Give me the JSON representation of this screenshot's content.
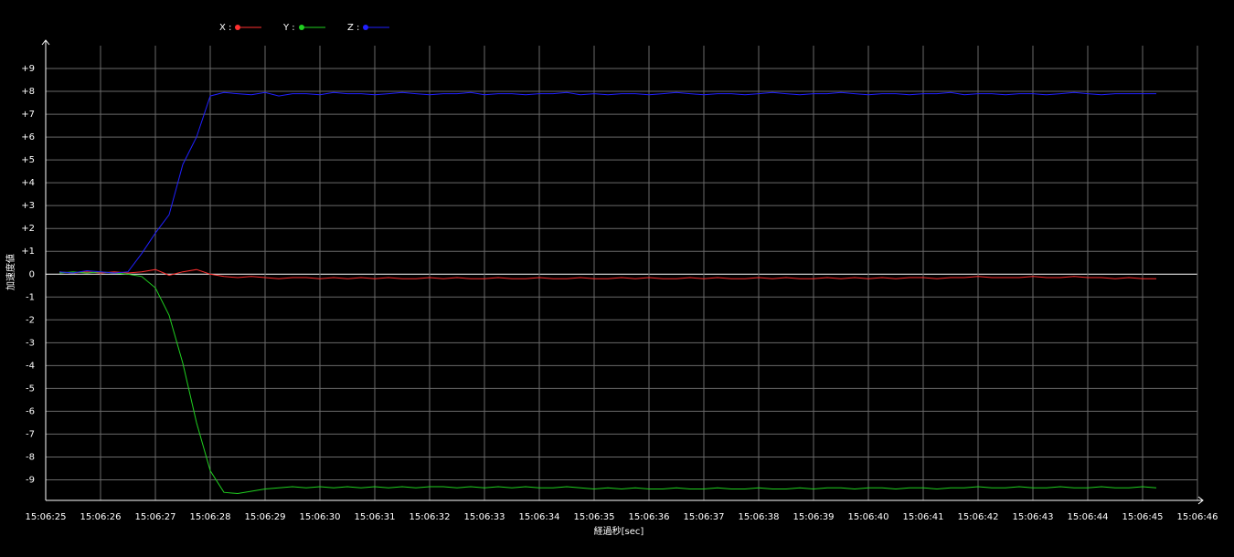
{
  "chart_data": {
    "type": "line",
    "xlabel": "経過秒[sec]",
    "ylabel": "加速度値",
    "x": [
      25.25,
      25.5,
      25.75,
      26,
      26.25,
      26.5,
      26.75,
      27,
      27.25,
      27.5,
      27.75,
      28,
      28.25,
      28.5,
      28.75,
      29,
      29.25,
      29.5,
      29.75,
      30,
      30.25,
      30.5,
      30.75,
      31,
      31.25,
      31.5,
      31.75,
      32,
      32.25,
      32.5,
      32.75,
      33,
      33.25,
      33.5,
      33.75,
      34,
      34.25,
      34.5,
      34.75,
      35,
      35.25,
      35.5,
      35.75,
      36,
      36.25,
      36.5,
      36.75,
      37,
      37.25,
      37.5,
      37.75,
      38,
      38.25,
      38.5,
      38.75,
      39,
      39.25,
      39.5,
      39.75,
      40,
      40.25,
      40.5,
      40.75,
      41,
      41.25,
      41.5,
      41.75,
      42,
      42.25,
      42.5,
      42.75,
      43,
      43.25,
      43.5,
      43.75,
      44,
      44.25,
      44.5,
      44.75,
      45,
      45.25
    ],
    "series": [
      {
        "name": "X :",
        "color": "#ff3030",
        "values": [
          0.1,
          0.05,
          0.1,
          0.05,
          0.1,
          0.05,
          0.1,
          0.2,
          -0.05,
          0.1,
          0.2,
          0.0,
          -0.1,
          -0.15,
          -0.1,
          -0.15,
          -0.2,
          -0.15,
          -0.15,
          -0.2,
          -0.15,
          -0.2,
          -0.15,
          -0.2,
          -0.15,
          -0.2,
          -0.2,
          -0.15,
          -0.2,
          -0.15,
          -0.2,
          -0.2,
          -0.15,
          -0.2,
          -0.2,
          -0.15,
          -0.2,
          -0.2,
          -0.15,
          -0.2,
          -0.2,
          -0.15,
          -0.2,
          -0.15,
          -0.2,
          -0.2,
          -0.15,
          -0.2,
          -0.15,
          -0.2,
          -0.2,
          -0.15,
          -0.2,
          -0.15,
          -0.2,
          -0.2,
          -0.15,
          -0.2,
          -0.15,
          -0.2,
          -0.15,
          -0.2,
          -0.15,
          -0.15,
          -0.2,
          -0.15,
          -0.15,
          -0.1,
          -0.15,
          -0.15,
          -0.15,
          -0.1,
          -0.15,
          -0.15,
          -0.1,
          -0.15,
          -0.15,
          -0.2,
          -0.15,
          -0.2,
          -0.2
        ]
      },
      {
        "name": "Y :",
        "color": "#20d020",
        "values": [
          0.05,
          0.1,
          0.05,
          0.1,
          0.05,
          0.0,
          -0.1,
          -0.6,
          -1.8,
          -3.9,
          -6.5,
          -8.6,
          -9.55,
          -9.6,
          -9.5,
          -9.4,
          -9.35,
          -9.3,
          -9.35,
          -9.3,
          -9.35,
          -9.3,
          -9.35,
          -9.3,
          -9.35,
          -9.3,
          -9.35,
          -9.3,
          -9.3,
          -9.35,
          -9.3,
          -9.35,
          -9.3,
          -9.35,
          -9.3,
          -9.35,
          -9.35,
          -9.3,
          -9.35,
          -9.4,
          -9.35,
          -9.4,
          -9.35,
          -9.4,
          -9.4,
          -9.35,
          -9.4,
          -9.4,
          -9.35,
          -9.4,
          -9.4,
          -9.35,
          -9.4,
          -9.4,
          -9.35,
          -9.4,
          -9.35,
          -9.35,
          -9.4,
          -9.35,
          -9.35,
          -9.4,
          -9.35,
          -9.35,
          -9.4,
          -9.35,
          -9.35,
          -9.3,
          -9.35,
          -9.35,
          -9.3,
          -9.35,
          -9.35,
          -9.3,
          -9.35,
          -9.35,
          -9.3,
          -9.35,
          -9.35,
          -9.3,
          -9.35
        ]
      },
      {
        "name": "Z :",
        "color": "#2020ff",
        "values": [
          0.1,
          0.05,
          0.15,
          0.1,
          0.05,
          0.1,
          0.9,
          1.8,
          2.6,
          4.8,
          6.0,
          7.8,
          7.95,
          7.9,
          7.85,
          7.95,
          7.8,
          7.9,
          7.9,
          7.85,
          7.95,
          7.9,
          7.9,
          7.85,
          7.9,
          7.95,
          7.9,
          7.85,
          7.9,
          7.9,
          7.95,
          7.85,
          7.9,
          7.9,
          7.85,
          7.9,
          7.9,
          7.95,
          7.85,
          7.9,
          7.85,
          7.9,
          7.9,
          7.85,
          7.9,
          7.95,
          7.9,
          7.85,
          7.9,
          7.9,
          7.85,
          7.9,
          7.95,
          7.9,
          7.85,
          7.9,
          7.9,
          7.95,
          7.9,
          7.85,
          7.9,
          7.9,
          7.85,
          7.9,
          7.9,
          7.95,
          7.85,
          7.9,
          7.9,
          7.85,
          7.9,
          7.9,
          7.85,
          7.9,
          7.95,
          7.9,
          7.85,
          7.9,
          7.9,
          7.9,
          7.9
        ]
      }
    ],
    "xlim": [
      25,
      46
    ],
    "ylim": [
      -9.9,
      10
    ],
    "xticks": [
      {
        "value": 25,
        "label": "15:06:25"
      },
      {
        "value": 26,
        "label": "15:06:26"
      },
      {
        "value": 27,
        "label": "15:06:27"
      },
      {
        "value": 28,
        "label": "15:06:28"
      },
      {
        "value": 29,
        "label": "15:06:29"
      },
      {
        "value": 30,
        "label": "15:06:30"
      },
      {
        "value": 31,
        "label": "15:06:31"
      },
      {
        "value": 32,
        "label": "15:06:32"
      },
      {
        "value": 33,
        "label": "15:06:33"
      },
      {
        "value": 34,
        "label": "15:06:34"
      },
      {
        "value": 35,
        "label": "15:06:35"
      },
      {
        "value": 36,
        "label": "15:06:36"
      },
      {
        "value": 37,
        "label": "15:06:37"
      },
      {
        "value": 38,
        "label": "15:06:38"
      },
      {
        "value": 39,
        "label": "15:06:39"
      },
      {
        "value": 40,
        "label": "15:06:40"
      },
      {
        "value": 41,
        "label": "15:06:41"
      },
      {
        "value": 42,
        "label": "15:06:42"
      },
      {
        "value": 43,
        "label": "15:06:43"
      },
      {
        "value": 44,
        "label": "15:06:44"
      },
      {
        "value": 45,
        "label": "15:06:45"
      },
      {
        "value": 46,
        "label": "15:06:46"
      }
    ],
    "yticks": [
      {
        "value": 9,
        "label": "+9"
      },
      {
        "value": 8,
        "label": "+8"
      },
      {
        "value": 7,
        "label": "+7"
      },
      {
        "value": 6,
        "label": "+6"
      },
      {
        "value": 5,
        "label": "+5"
      },
      {
        "value": 4,
        "label": "+4"
      },
      {
        "value": 3,
        "label": "+3"
      },
      {
        "value": 2,
        "label": "+2"
      },
      {
        "value": 1,
        "label": "+1"
      },
      0,
      -1,
      -2,
      -3,
      -4,
      -5,
      -6,
      -7,
      -8,
      -9
    ],
    "grid": true
  }
}
